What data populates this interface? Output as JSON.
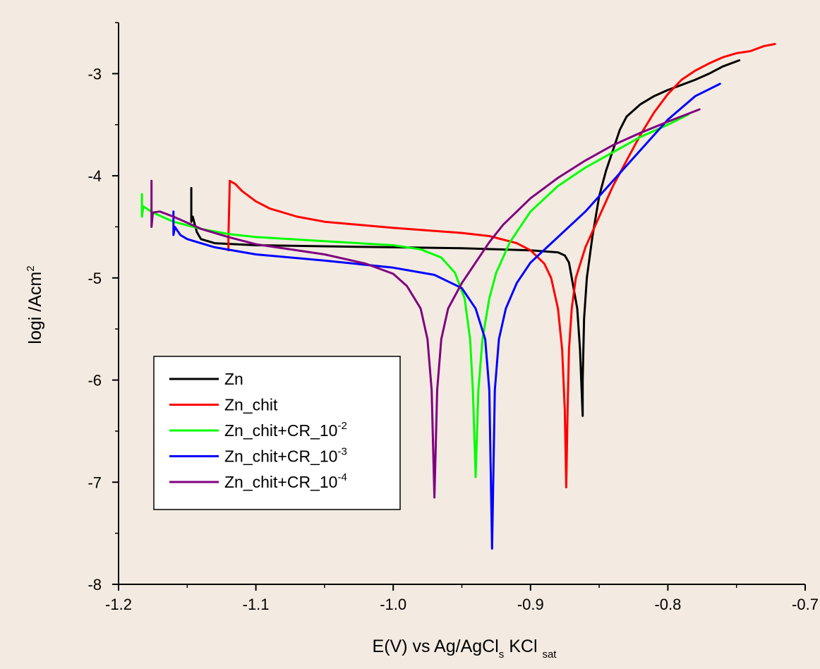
{
  "chart_data": {
    "type": "line",
    "xlabel": {
      "main": "E(V) vs Ag/AgCl",
      "sub1": "s",
      "mid": " KCl ",
      "sub2": "sat"
    },
    "ylabel": {
      "main": "logi /Acm",
      "sup": "2"
    },
    "xlim": [
      -1.2,
      -0.7
    ],
    "ylim": [
      -8,
      -2.5
    ],
    "xticks": [
      -1.2,
      -1.1,
      -1.0,
      -0.9,
      -0.8,
      -0.7
    ],
    "xtick_labels": [
      "-1.2",
      "-1.1",
      "-1.0",
      "-0.9",
      "-0.8",
      "-0.7"
    ],
    "yticks": [
      -8,
      -7,
      -6,
      -5,
      -4,
      -3
    ],
    "ytick_labels": [
      "-8",
      "-7",
      "-6",
      "-5",
      "-4",
      "-3"
    ],
    "grid": false,
    "legend_position": "lower-left",
    "series": [
      {
        "name": "Zn",
        "legend_base": "Zn",
        "legend_sup": "",
        "color": "#000000",
        "points": [
          [
            -1.147,
            -4.12
          ],
          [
            -1.147,
            -4.45
          ],
          [
            -1.146,
            -4.4
          ],
          [
            -1.143,
            -4.55
          ],
          [
            -1.14,
            -4.62
          ],
          [
            -1.13,
            -4.66
          ],
          [
            -1.1,
            -4.68
          ],
          [
            -1.05,
            -4.69
          ],
          [
            -1.0,
            -4.7
          ],
          [
            -0.95,
            -4.71
          ],
          [
            -0.9,
            -4.73
          ],
          [
            -0.88,
            -4.75
          ],
          [
            -0.875,
            -4.78
          ],
          [
            -0.872,
            -4.85
          ],
          [
            -0.87,
            -5.0
          ],
          [
            -0.866,
            -5.3
          ],
          [
            -0.864,
            -5.7
          ],
          [
            -0.862,
            -6.35
          ],
          [
            -0.862,
            -6.0
          ],
          [
            -0.861,
            -5.4
          ],
          [
            -0.859,
            -5.0
          ],
          [
            -0.855,
            -4.6
          ],
          [
            -0.85,
            -4.2
          ],
          [
            -0.845,
            -3.95
          ],
          [
            -0.84,
            -3.75
          ],
          [
            -0.835,
            -3.55
          ],
          [
            -0.83,
            -3.42
          ],
          [
            -0.82,
            -3.3
          ],
          [
            -0.81,
            -3.22
          ],
          [
            -0.8,
            -3.16
          ],
          [
            -0.79,
            -3.11
          ],
          [
            -0.78,
            -3.06
          ],
          [
            -0.77,
            -3.0
          ],
          [
            -0.76,
            -2.93
          ],
          [
            -0.748,
            -2.87
          ]
        ]
      },
      {
        "name": "Zn_chit",
        "legend_base": "Zn_chit",
        "legend_sup": "",
        "color": "#ff0000",
        "points": [
          [
            -1.12,
            -4.73
          ],
          [
            -1.12,
            -4.6
          ],
          [
            -1.119,
            -4.05
          ],
          [
            -1.115,
            -4.08
          ],
          [
            -1.11,
            -4.15
          ],
          [
            -1.1,
            -4.25
          ],
          [
            -1.09,
            -4.32
          ],
          [
            -1.07,
            -4.4
          ],
          [
            -1.05,
            -4.45
          ],
          [
            -1.0,
            -4.51
          ],
          [
            -0.95,
            -4.56
          ],
          [
            -0.93,
            -4.59
          ],
          [
            -0.91,
            -4.66
          ],
          [
            -0.9,
            -4.73
          ],
          [
            -0.89,
            -4.86
          ],
          [
            -0.885,
            -5.0
          ],
          [
            -0.88,
            -5.3
          ],
          [
            -0.877,
            -5.7
          ],
          [
            -0.875,
            -6.3
          ],
          [
            -0.874,
            -7.05
          ],
          [
            -0.873,
            -6.3
          ],
          [
            -0.872,
            -5.7
          ],
          [
            -0.87,
            -5.3
          ],
          [
            -0.867,
            -5.0
          ],
          [
            -0.86,
            -4.7
          ],
          [
            -0.85,
            -4.4
          ],
          [
            -0.84,
            -4.1
          ],
          [
            -0.83,
            -3.85
          ],
          [
            -0.82,
            -3.6
          ],
          [
            -0.81,
            -3.38
          ],
          [
            -0.8,
            -3.2
          ],
          [
            -0.79,
            -3.06
          ],
          [
            -0.78,
            -2.97
          ],
          [
            -0.77,
            -2.9
          ],
          [
            -0.76,
            -2.84
          ],
          [
            -0.75,
            -2.8
          ],
          [
            -0.74,
            -2.78
          ],
          [
            -0.73,
            -2.73
          ],
          [
            -0.722,
            -2.71
          ]
        ]
      },
      {
        "name": "Zn_chit+CR_10-2",
        "legend_base": "Zn_chit+CR_10",
        "legend_sup": "-2",
        "color": "#00ff00",
        "points": [
          [
            -1.183,
            -4.18
          ],
          [
            -1.183,
            -4.4
          ],
          [
            -1.182,
            -4.3
          ],
          [
            -1.175,
            -4.36
          ],
          [
            -1.16,
            -4.45
          ],
          [
            -1.14,
            -4.52
          ],
          [
            -1.12,
            -4.57
          ],
          [
            -1.1,
            -4.6
          ],
          [
            -1.05,
            -4.64
          ],
          [
            -1.0,
            -4.68
          ],
          [
            -0.98,
            -4.72
          ],
          [
            -0.965,
            -4.8
          ],
          [
            -0.955,
            -4.95
          ],
          [
            -0.948,
            -5.2
          ],
          [
            -0.944,
            -5.6
          ],
          [
            -0.942,
            -6.1
          ],
          [
            -0.94,
            -6.95
          ],
          [
            -0.938,
            -6.1
          ],
          [
            -0.935,
            -5.6
          ],
          [
            -0.93,
            -5.2
          ],
          [
            -0.925,
            -4.95
          ],
          [
            -0.915,
            -4.65
          ],
          [
            -0.9,
            -4.35
          ],
          [
            -0.88,
            -4.1
          ],
          [
            -0.86,
            -3.92
          ],
          [
            -0.84,
            -3.77
          ],
          [
            -0.82,
            -3.62
          ],
          [
            -0.8,
            -3.5
          ],
          [
            -0.785,
            -3.4
          ]
        ]
      },
      {
        "name": "Zn_chit+CR_10-3",
        "legend_base": "Zn_chit+CR_10",
        "legend_sup": "-3",
        "color": "#0000ff",
        "points": [
          [
            -1.16,
            -4.35
          ],
          [
            -1.16,
            -4.58
          ],
          [
            -1.159,
            -4.5
          ],
          [
            -1.155,
            -4.58
          ],
          [
            -1.15,
            -4.62
          ],
          [
            -1.13,
            -4.7
          ],
          [
            -1.1,
            -4.77
          ],
          [
            -1.05,
            -4.83
          ],
          [
            -1.0,
            -4.9
          ],
          [
            -0.97,
            -4.97
          ],
          [
            -0.95,
            -5.1
          ],
          [
            -0.94,
            -5.3
          ],
          [
            -0.933,
            -5.6
          ],
          [
            -0.93,
            -6.1
          ],
          [
            -0.928,
            -7.65
          ],
          [
            -0.926,
            -6.1
          ],
          [
            -0.923,
            -5.6
          ],
          [
            -0.918,
            -5.3
          ],
          [
            -0.91,
            -5.05
          ],
          [
            -0.9,
            -4.85
          ],
          [
            -0.88,
            -4.6
          ],
          [
            -0.86,
            -4.35
          ],
          [
            -0.84,
            -4.05
          ],
          [
            -0.82,
            -3.75
          ],
          [
            -0.8,
            -3.45
          ],
          [
            -0.78,
            -3.22
          ],
          [
            -0.762,
            -3.1
          ]
        ]
      },
      {
        "name": "Zn_chit+CR_10-4",
        "legend_base": "Zn_chit+CR_10",
        "legend_sup": "-4",
        "color": "#800080",
        "points": [
          [
            -1.176,
            -4.05
          ],
          [
            -1.176,
            -4.5
          ],
          [
            -1.175,
            -4.36
          ],
          [
            -1.17,
            -4.35
          ],
          [
            -1.16,
            -4.4
          ],
          [
            -1.14,
            -4.52
          ],
          [
            -1.12,
            -4.6
          ],
          [
            -1.1,
            -4.67
          ],
          [
            -1.05,
            -4.77
          ],
          [
            -1.02,
            -4.86
          ],
          [
            -1.0,
            -4.96
          ],
          [
            -0.99,
            -5.08
          ],
          [
            -0.98,
            -5.3
          ],
          [
            -0.975,
            -5.6
          ],
          [
            -0.972,
            -6.1
          ],
          [
            -0.97,
            -7.15
          ],
          [
            -0.968,
            -6.1
          ],
          [
            -0.965,
            -5.6
          ],
          [
            -0.96,
            -5.3
          ],
          [
            -0.95,
            -5.05
          ],
          [
            -0.94,
            -4.85
          ],
          [
            -0.93,
            -4.65
          ],
          [
            -0.92,
            -4.48
          ],
          [
            -0.9,
            -4.22
          ],
          [
            -0.88,
            -4.02
          ],
          [
            -0.86,
            -3.85
          ],
          [
            -0.84,
            -3.7
          ],
          [
            -0.82,
            -3.58
          ],
          [
            -0.8,
            -3.47
          ],
          [
            -0.777,
            -3.35
          ]
        ]
      }
    ]
  }
}
